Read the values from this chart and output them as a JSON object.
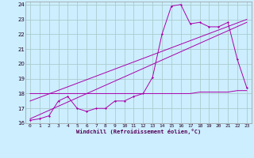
{
  "xlabel": "Windchill (Refroidissement éolien,°C)",
  "bg_color": "#cceeff",
  "grid_color": "#aacccc",
  "line_color": "#aa00aa",
  "xlim": [
    -0.5,
    23.5
  ],
  "ylim": [
    16,
    24.2
  ],
  "yticks": [
    16,
    17,
    18,
    19,
    20,
    21,
    22,
    23,
    24
  ],
  "xticks": [
    0,
    1,
    2,
    3,
    4,
    5,
    6,
    7,
    8,
    9,
    10,
    11,
    12,
    13,
    14,
    15,
    16,
    17,
    18,
    19,
    20,
    21,
    22,
    23
  ],
  "line1_x": [
    0,
    1,
    2,
    3,
    4,
    5,
    6,
    7,
    8,
    9,
    10,
    11,
    12,
    13,
    14,
    15,
    16,
    17,
    18,
    19,
    20,
    21,
    22,
    23
  ],
  "line1_y": [
    16.2,
    16.3,
    16.5,
    17.5,
    17.8,
    17.0,
    16.8,
    17.0,
    17.0,
    17.5,
    17.5,
    17.8,
    18.0,
    19.1,
    22.0,
    23.9,
    24.0,
    22.7,
    22.8,
    22.5,
    22.5,
    22.8,
    20.3,
    18.4
  ],
  "line2_x": [
    0,
    1,
    2,
    3,
    4,
    5,
    6,
    7,
    8,
    9,
    10,
    11,
    12,
    13,
    14,
    15,
    16,
    17,
    18,
    19,
    20,
    21,
    22,
    23
  ],
  "line2_y": [
    18.0,
    18.0,
    18.0,
    18.0,
    18.0,
    18.0,
    18.0,
    18.0,
    18.0,
    18.0,
    18.0,
    18.0,
    18.0,
    18.0,
    18.0,
    18.0,
    18.0,
    18.0,
    18.1,
    18.1,
    18.1,
    18.1,
    18.2,
    18.2
  ],
  "line3_x": [
    0,
    23
  ],
  "line3_y": [
    16.3,
    22.8
  ],
  "line4_x": [
    0,
    23
  ],
  "line4_y": [
    17.5,
    23.0
  ]
}
